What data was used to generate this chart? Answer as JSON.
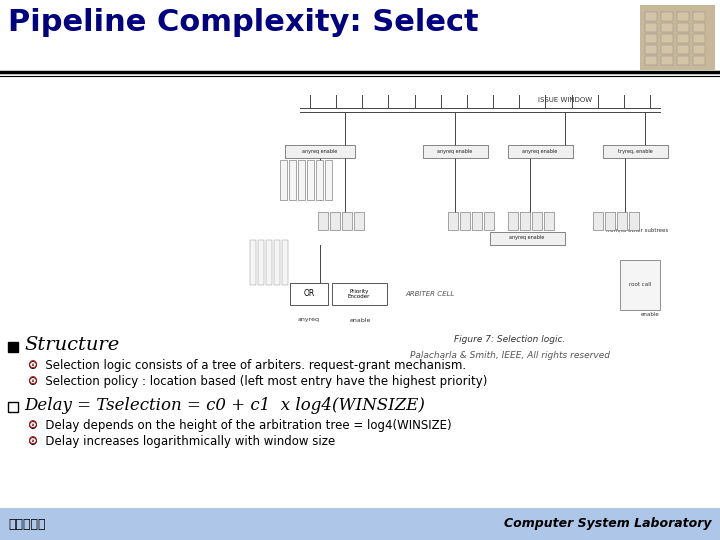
{
  "title": "Pipeline Complexity: Select",
  "title_color": "#000080",
  "title_fontsize": 22,
  "bg_color": "#ffffff",
  "header_line_color": "#000000",
  "structure_label": "Structure",
  "structure_bullet1": "Selection logic consists of a tree of arbiters. request-grant mechanism.",
  "structure_bullet2": "Selection policy : location based (left most entry have the highest priority)",
  "delay_label_part1": "Delay",
  "delay_label_part2": " = ",
  "delay_label_part3": "Tselection = c0 + c1",
  "delay_label_part4": "  x ",
  "delay_label_part5": "log4(WINSIZE)",
  "delay_bullet1": "Delay depends on the height of the arbitration tree = log4(WINSIZE)",
  "delay_bullet2": "Delay increases logarithmically with window size",
  "citation": "Palacharla & Smith, IEEE, All rights reserved",
  "fig_caption": "Figure 7: Selection logic.",
  "footer_bg": "#aec6e8",
  "footer_left": "高麗大學校",
  "footer_right": "Computer System Laboratory",
  "bullet_color": "#cc0000",
  "bullet_symbol": "⊙",
  "diagram_color": "#ffffff",
  "line_color": "#444444",
  "box_fill": "#e8e8e8"
}
